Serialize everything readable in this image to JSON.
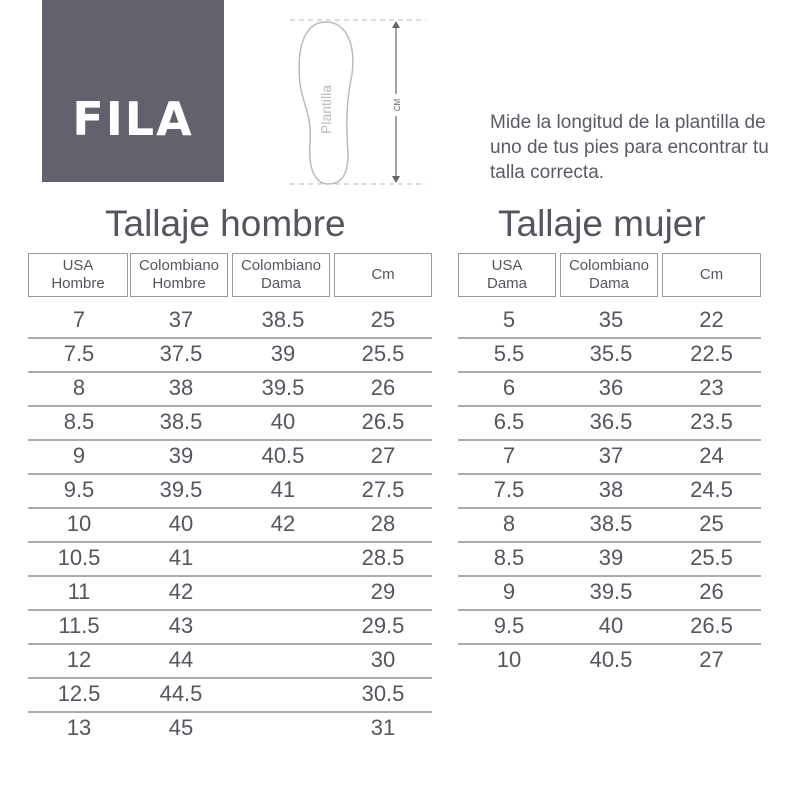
{
  "logo": {
    "text": "FILA",
    "bg_color": "#62616d"
  },
  "diagram": {
    "insole_label": "Plantilla",
    "measure_label": "CM"
  },
  "instructions": "Mide la longitud de la plantilla de uno de tus pies para encontrar tu talla correcta.",
  "men": {
    "title": "Tallaje hombre",
    "headers": [
      "USA\nHombre",
      "Colombiano\nHombre",
      "Colombiano\nDama",
      "Cm"
    ],
    "rows": [
      [
        "7",
        "37",
        "38.5",
        "25"
      ],
      [
        "7.5",
        "37.5",
        "39",
        "25.5"
      ],
      [
        "8",
        "38",
        "39.5",
        "26"
      ],
      [
        "8.5",
        "38.5",
        "40",
        "26.5"
      ],
      [
        "9",
        "39",
        "40.5",
        "27"
      ],
      [
        "9.5",
        "39.5",
        "41",
        "27.5"
      ],
      [
        "10",
        "40",
        "42",
        "28"
      ],
      [
        "10.5",
        "41",
        "",
        "28.5"
      ],
      [
        "11",
        "42",
        "",
        "29"
      ],
      [
        "11.5",
        "43",
        "",
        "29.5"
      ],
      [
        "12",
        "44",
        "",
        "30"
      ],
      [
        "12.5",
        "44.5",
        "",
        "30.5"
      ],
      [
        "13",
        "45",
        "",
        "31"
      ]
    ]
  },
  "women": {
    "title": "Tallaje mujer",
    "headers": [
      "USA\nDama",
      "Colombiano\nDama",
      "Cm"
    ],
    "rows": [
      [
        "5",
        "35",
        "22"
      ],
      [
        "5.5",
        "35.5",
        "22.5"
      ],
      [
        "6",
        "36",
        "23"
      ],
      [
        "6.5",
        "36.5",
        "23.5"
      ],
      [
        "7",
        "37",
        "24"
      ],
      [
        "7.5",
        "38",
        "24.5"
      ],
      [
        "8",
        "38.5",
        "25"
      ],
      [
        "8.5",
        "39",
        "25.5"
      ],
      [
        "9",
        "39.5",
        "26"
      ],
      [
        "9.5",
        "40",
        "26.5"
      ],
      [
        "10",
        "40.5",
        "27"
      ]
    ]
  }
}
